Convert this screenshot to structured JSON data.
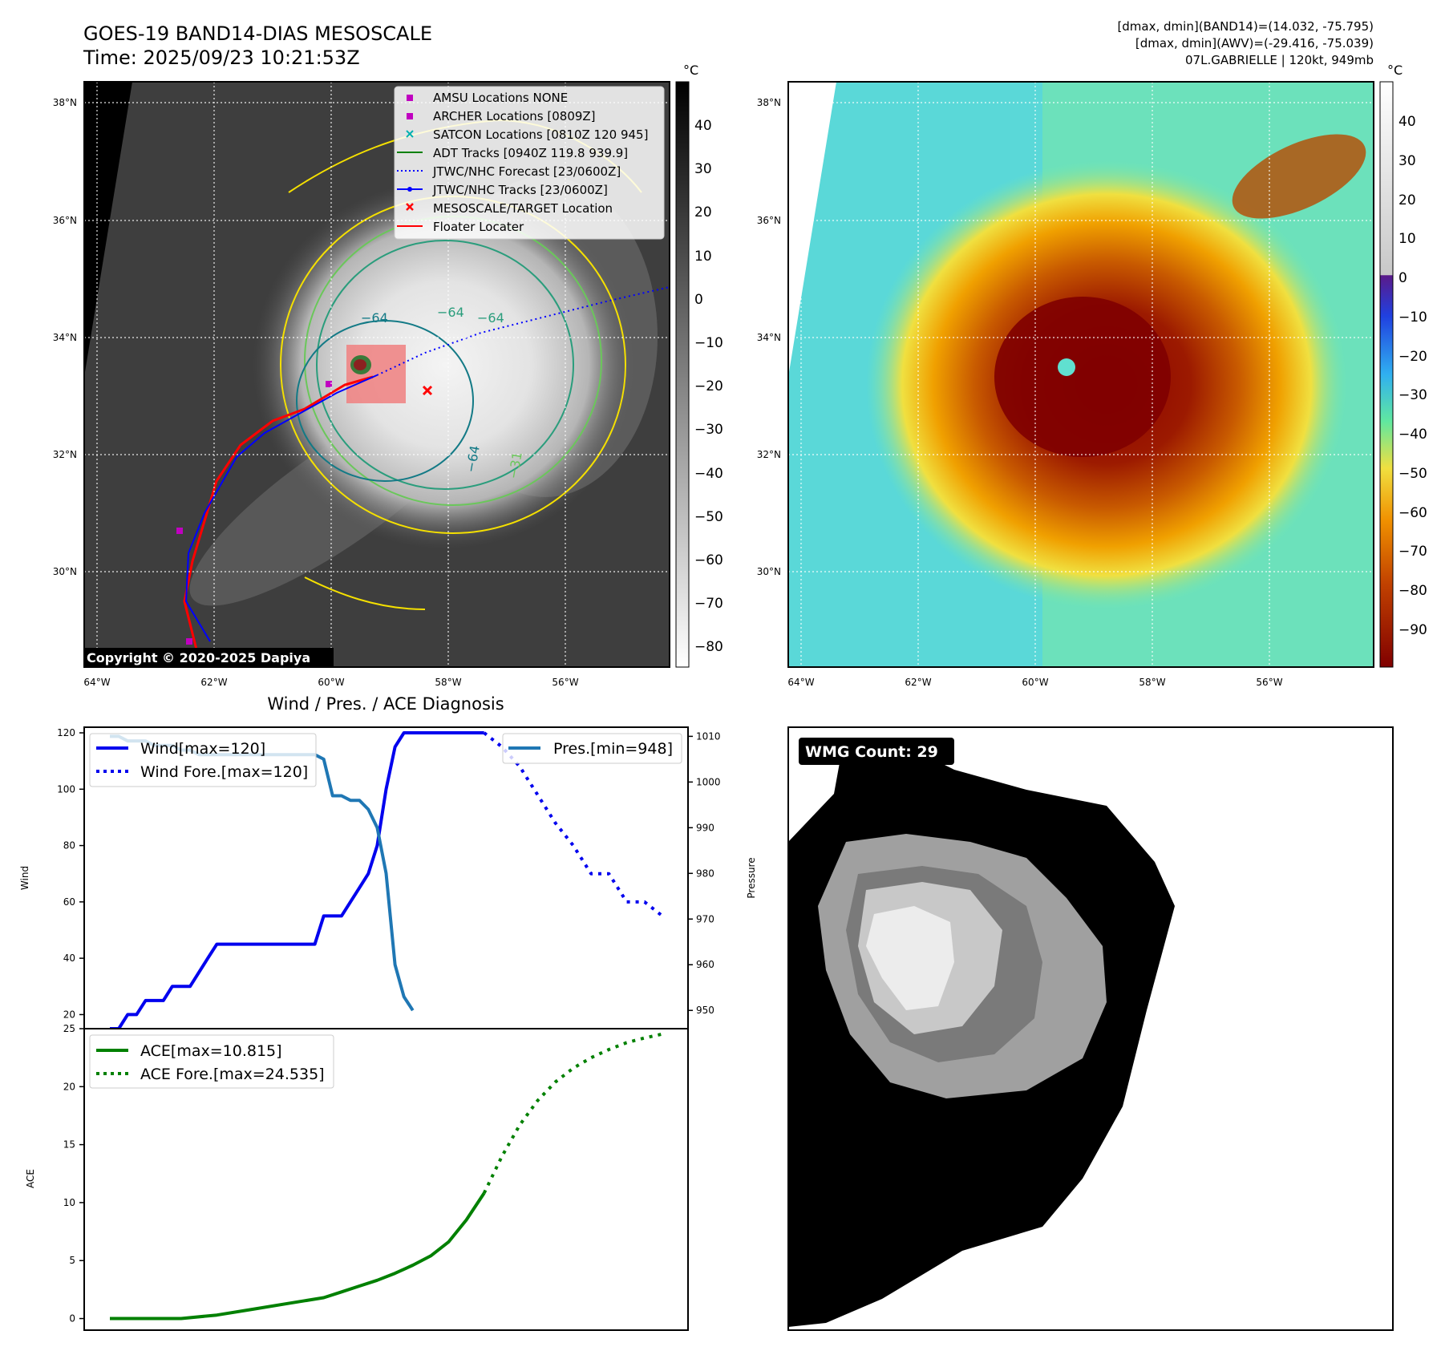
{
  "header": {
    "title_line1": "GOES-19 BAND14-DIAS MESOSCALE",
    "title_line2": "Time: 2025/09/23 10:21:53Z",
    "info_line1": "[dmax, dmin](BAND14)=(14.032, -75.795)",
    "info_line2": "[dmax, dmin](AWV)=(-29.416, -75.039)",
    "info_line3": "07L.GABRIELLE | 120kt, 949mb"
  },
  "copyright": "Copyright © 2020-2025 Dapiya",
  "map": {
    "lon_ticks": [
      "64°W",
      "62°W",
      "60°W",
      "58°W",
      "56°W"
    ],
    "lat_ticks": [
      "38°N",
      "36°N",
      "34°N",
      "32°N",
      "30°N"
    ],
    "contour_labels": [
      "−64",
      "−64",
      "−64",
      "−64",
      "−31"
    ],
    "colors": {
      "yellow": "#f5e000",
      "green": "#6ac75a",
      "teal": "#2a9d7c",
      "darkteal": "#137a86"
    }
  },
  "legend": {
    "items": [
      {
        "label": "AMSU Locations NONE",
        "color": "#c000c0",
        "kind": "square"
      },
      {
        "label": "ARCHER Locations [0809Z]",
        "color": "#c000c0",
        "kind": "square"
      },
      {
        "label": "SATCON Locations [0810Z 120 945]",
        "color": "#00b0b0",
        "kind": "x"
      },
      {
        "label": "ADT Tracks [0940Z 119.8 939.9]",
        "color": "#008000",
        "kind": "line"
      },
      {
        "label": "JTWC/NHC Forecast [23/0600Z]",
        "color": "#0000ff",
        "kind": "dotted"
      },
      {
        "label": "JTWC/NHC Tracks [23/0600Z]",
        "color": "#0000ff",
        "kind": "linedot"
      },
      {
        "label": "MESOSCALE/TARGET Location",
        "color": "#ff0000",
        "kind": "redx"
      },
      {
        "label": "Floater Locater",
        "color": "#ff0000",
        "kind": "line"
      }
    ]
  },
  "colorbar_gray": {
    "unit": "°C",
    "ticks": [
      "40",
      "30",
      "20",
      "10",
      "0",
      "−10",
      "−20",
      "−30",
      "−40",
      "−50",
      "−60",
      "−70",
      "−80"
    ]
  },
  "colorbar_color": {
    "unit": "°C",
    "ticks": [
      "40",
      "30",
      "20",
      "10",
      "0",
      "−10",
      "−20",
      "−30",
      "−40",
      "−50",
      "−60",
      "−70",
      "−80",
      "−90"
    ]
  },
  "wmg": {
    "label": "WMG Count: 29"
  },
  "chart_data": [
    {
      "type": "line",
      "title": "Wind / Pres. / ACE Diagnosis",
      "ylabel": "Wind",
      "ylabel_right": "Pressure",
      "ylim": [
        15,
        122
      ],
      "ylim_right": [
        946,
        1012
      ],
      "y_ticks": [
        20,
        40,
        60,
        80,
        100,
        120
      ],
      "y_ticks_right": [
        950,
        960,
        970,
        980,
        990,
        1000,
        1010
      ],
      "legend_left": [
        "Wind[max=120]",
        "Wind Fore.[max=120]"
      ],
      "legend_right": [
        "Pres.[min=948]"
      ],
      "series": [
        {
          "name": "Wind[max=120]",
          "style": "solid",
          "color": "#0000ee",
          "x": [
            0,
            1,
            2,
            3,
            4,
            5,
            6,
            7,
            8,
            9,
            10,
            11,
            12,
            13,
            14,
            15,
            16,
            17,
            18,
            19,
            20,
            21,
            22,
            23,
            24,
            25,
            26,
            27,
            28,
            29,
            30,
            31,
            32,
            33,
            34,
            35,
            36,
            37,
            38,
            39,
            40,
            41,
            42
          ],
          "values": [
            15,
            15,
            20,
            20,
            25,
            25,
            25,
            30,
            30,
            30,
            35,
            40,
            45,
            45,
            45,
            45,
            45,
            45,
            45,
            45,
            45,
            45,
            45,
            45,
            55,
            55,
            55,
            60,
            65,
            70,
            80,
            100,
            115,
            120,
            120,
            120,
            120,
            120,
            120,
            120,
            120,
            120,
            120
          ]
        },
        {
          "name": "Wind Fore.[max=120]",
          "style": "dotted",
          "color": "#0000ee",
          "x": [
            42,
            44,
            46,
            48,
            50,
            52,
            54,
            56,
            58,
            60,
            62
          ],
          "values": [
            120,
            115,
            108,
            98,
            88,
            80,
            70,
            70,
            60,
            60,
            55
          ]
        },
        {
          "name": "Pres.[min=948]",
          "style": "solid",
          "color": "#1f77b4",
          "axis": "right",
          "x": [
            0,
            1,
            2,
            3,
            4,
            5,
            6,
            7,
            8,
            9,
            10,
            11,
            12,
            13,
            14,
            15,
            16,
            17,
            18,
            19,
            20,
            21,
            22,
            23,
            24,
            25,
            26,
            27,
            28,
            29,
            30,
            31,
            32,
            33,
            34
          ],
          "values": [
            1010,
            1010,
            1009,
            1009,
            1009,
            1008,
            1008,
            1008,
            1007,
            1007,
            1006,
            1006,
            1006,
            1006,
            1006,
            1006,
            1006,
            1006,
            1006,
            1006,
            1006,
            1006,
            1006,
            1006,
            1005,
            997,
            997,
            996,
            996,
            994,
            990,
            980,
            960,
            953,
            950
          ]
        }
      ]
    },
    {
      "type": "line",
      "ylabel": "ACE",
      "ylim": [
        -1,
        25
      ],
      "y_ticks": [
        0,
        5,
        10,
        15,
        20,
        25
      ],
      "legend": [
        "ACE[max=10.815]",
        "ACE Fore.[max=24.535]"
      ],
      "series": [
        {
          "name": "ACE[max=10.815]",
          "style": "solid",
          "color": "#008000",
          "x": [
            0,
            4,
            8,
            12,
            16,
            20,
            24,
            26,
            28,
            30,
            32,
            34,
            36,
            38,
            40,
            42
          ],
          "values": [
            0,
            0,
            0,
            0.3,
            0.8,
            1.3,
            1.8,
            2.3,
            2.8,
            3.3,
            3.9,
            4.6,
            5.4,
            6.6,
            8.5,
            10.815
          ]
        },
        {
          "name": "ACE Fore.[max=24.535]",
          "style": "dotted",
          "color": "#008000",
          "x": [
            42,
            44,
            46,
            48,
            50,
            52,
            54,
            56,
            58,
            60,
            62
          ],
          "values": [
            10.815,
            14,
            16.7,
            18.8,
            20.4,
            21.6,
            22.5,
            23.2,
            23.8,
            24.2,
            24.535
          ]
        }
      ]
    }
  ]
}
